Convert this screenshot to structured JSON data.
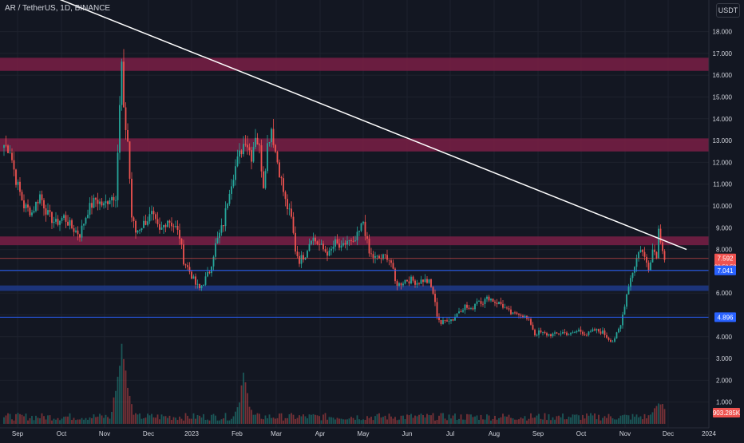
{
  "header": {
    "symbol": "AR / TetherUS",
    "interval": "1D",
    "exchange": "BINANCE",
    "title_text": "AR / TetherUS, 1D, BINANCE",
    "currency": "USDT"
  },
  "colors": {
    "background": "#131722",
    "grid": "#1e222d",
    "bull": "#26a69a",
    "bear": "#ef5350",
    "trendline": "#ffffff",
    "zone": "#7a1f45",
    "support_line": "#2962ff",
    "axis_text": "#d1d4dc"
  },
  "chart_data": {
    "type": "candlestick",
    "title": "AR / TetherUS, 1D, BINANCE",
    "y_unit": "USDT",
    "ylim": [
      0,
      18.7
    ],
    "y_ticks": [
      "1.000",
      "2.000",
      "3.000",
      "4.000",
      "5.000",
      "6.000",
      "7.000",
      "8.000",
      "9.000",
      "10.000",
      "11.000",
      "12.000",
      "13.000",
      "14.000",
      "15.000",
      "16.000",
      "17.000",
      "18.000"
    ],
    "x_ticks": [
      "Sep",
      "Oct",
      "Nov",
      "Dec",
      "2023",
      "Feb",
      "Mar",
      "Apr",
      "May",
      "Jun",
      "Jul",
      "Aug",
      "Sep",
      "Oct",
      "Nov",
      "Dec",
      "2024"
    ],
    "grid": true,
    "price_path": [
      [
        0,
        12.8
      ],
      [
        3,
        12.6
      ],
      [
        6,
        11.2
      ],
      [
        10,
        10.0
      ],
      [
        14,
        9.7
      ],
      [
        18,
        10.5
      ],
      [
        22,
        9.6
      ],
      [
        26,
        9.2
      ],
      [
        30,
        9.5
      ],
      [
        34,
        9.0
      ],
      [
        38,
        8.7
      ],
      [
        42,
        9.8
      ],
      [
        46,
        10.3
      ],
      [
        50,
        10.0
      ],
      [
        53,
        10.4
      ],
      [
        56,
        10.5
      ],
      [
        58,
        14.5
      ],
      [
        59,
        16.5
      ],
      [
        60,
        14.2
      ],
      [
        62,
        13.0
      ],
      [
        64,
        9.5
      ],
      [
        66,
        8.8
      ],
      [
        70,
        9.2
      ],
      [
        74,
        9.6
      ],
      [
        78,
        8.8
      ],
      [
        82,
        9.4
      ],
      [
        86,
        9.0
      ],
      [
        88,
        8.6
      ],
      [
        90,
        7.5
      ],
      [
        93,
        7.0
      ],
      [
        96,
        6.4
      ],
      [
        98,
        6.2
      ],
      [
        100,
        6.5
      ],
      [
        103,
        7.0
      ],
      [
        106,
        8.2
      ],
      [
        110,
        9.2
      ],
      [
        113,
        10.8
      ],
      [
        116,
        11.8
      ],
      [
        119,
        12.6
      ],
      [
        121,
        13.1
      ],
      [
        124,
        12.3
      ],
      [
        126,
        13.3
      ],
      [
        128,
        12.6
      ],
      [
        130,
        11.0
      ],
      [
        132,
        12.8
      ],
      [
        134,
        13.6
      ],
      [
        136,
        12.5
      ],
      [
        138,
        11.6
      ],
      [
        141,
        10.2
      ],
      [
        144,
        9.4
      ],
      [
        146,
        8.0
      ],
      [
        148,
        7.5
      ],
      [
        151,
        7.8
      ],
      [
        154,
        8.6
      ],
      [
        157,
        8.3
      ],
      [
        160,
        8.0
      ],
      [
        163,
        7.8
      ],
      [
        166,
        8.3
      ],
      [
        169,
        8.0
      ],
      [
        172,
        8.4
      ],
      [
        175,
        8.2
      ],
      [
        178,
        8.8
      ],
      [
        180,
        9.3
      ],
      [
        183,
        7.8
      ],
      [
        186,
        7.6
      ],
      [
        189,
        7.6
      ],
      [
        192,
        7.7
      ],
      [
        194,
        7.4
      ],
      [
        196,
        6.5
      ],
      [
        198,
        6.4
      ],
      [
        201,
        6.6
      ],
      [
        204,
        6.6
      ],
      [
        207,
        6.5
      ],
      [
        210,
        6.6
      ],
      [
        213,
        6.5
      ],
      [
        215,
        6.0
      ],
      [
        217,
        5.0
      ],
      [
        219,
        4.6
      ],
      [
        222,
        4.8
      ],
      [
        225,
        4.8
      ],
      [
        228,
        5.2
      ],
      [
        231,
        5.4
      ],
      [
        234,
        5.2
      ],
      [
        237,
        5.7
      ],
      [
        240,
        5.6
      ],
      [
        243,
        5.8
      ],
      [
        246,
        5.6
      ],
      [
        249,
        5.5
      ],
      [
        252,
        5.2
      ],
      [
        255,
        5.0
      ],
      [
        258,
        5.1
      ],
      [
        261,
        4.9
      ],
      [
        264,
        4.6
      ],
      [
        266,
        4.1
      ],
      [
        268,
        4.2
      ],
      [
        272,
        4.1
      ],
      [
        276,
        4.1
      ],
      [
        280,
        4.2
      ],
      [
        284,
        4.1
      ],
      [
        288,
        4.3
      ],
      [
        292,
        4.1
      ],
      [
        296,
        4.3
      ],
      [
        300,
        4.2
      ],
      [
        303,
        3.9
      ],
      [
        305,
        3.8
      ],
      [
        307,
        4.1
      ],
      [
        309,
        4.5
      ],
      [
        311,
        5.5
      ],
      [
        313,
        6.4
      ],
      [
        315,
        7.0
      ],
      [
        317,
        7.6
      ],
      [
        319,
        8.1
      ],
      [
        321,
        7.6
      ],
      [
        323,
        7.2
      ],
      [
        325,
        8.0
      ],
      [
        327,
        7.8
      ],
      [
        328,
        8.9
      ],
      [
        330,
        8.1
      ],
      [
        331,
        7.6
      ]
    ],
    "volume_ylim": [
      0,
      5
    ],
    "volume_peaks": [
      [
        59,
        4.7
      ],
      [
        120,
        2.4
      ],
      [
        60,
        3.1
      ],
      [
        328,
        1.4
      ]
    ],
    "last_price": 7.592,
    "countdown": "08:58:58",
    "volume_value": "903.285K",
    "trendline": {
      "start": [
        0,
        20.5
      ],
      "end": [
        342,
        8.0
      ]
    },
    "resistance_zones": [
      {
        "low": 16.2,
        "high": 16.8
      },
      {
        "low": 12.5,
        "high": 13.1
      },
      {
        "low": 8.2,
        "high": 8.6
      }
    ],
    "support_zone": {
      "low": 6.1,
      "high": 6.35
    },
    "horizontal_lines": [
      {
        "value": 7.041,
        "label": "7.041",
        "color": "#2962ff"
      },
      {
        "value": 4.896,
        "label": "4.896",
        "color": "#2962ff"
      }
    ]
  }
}
